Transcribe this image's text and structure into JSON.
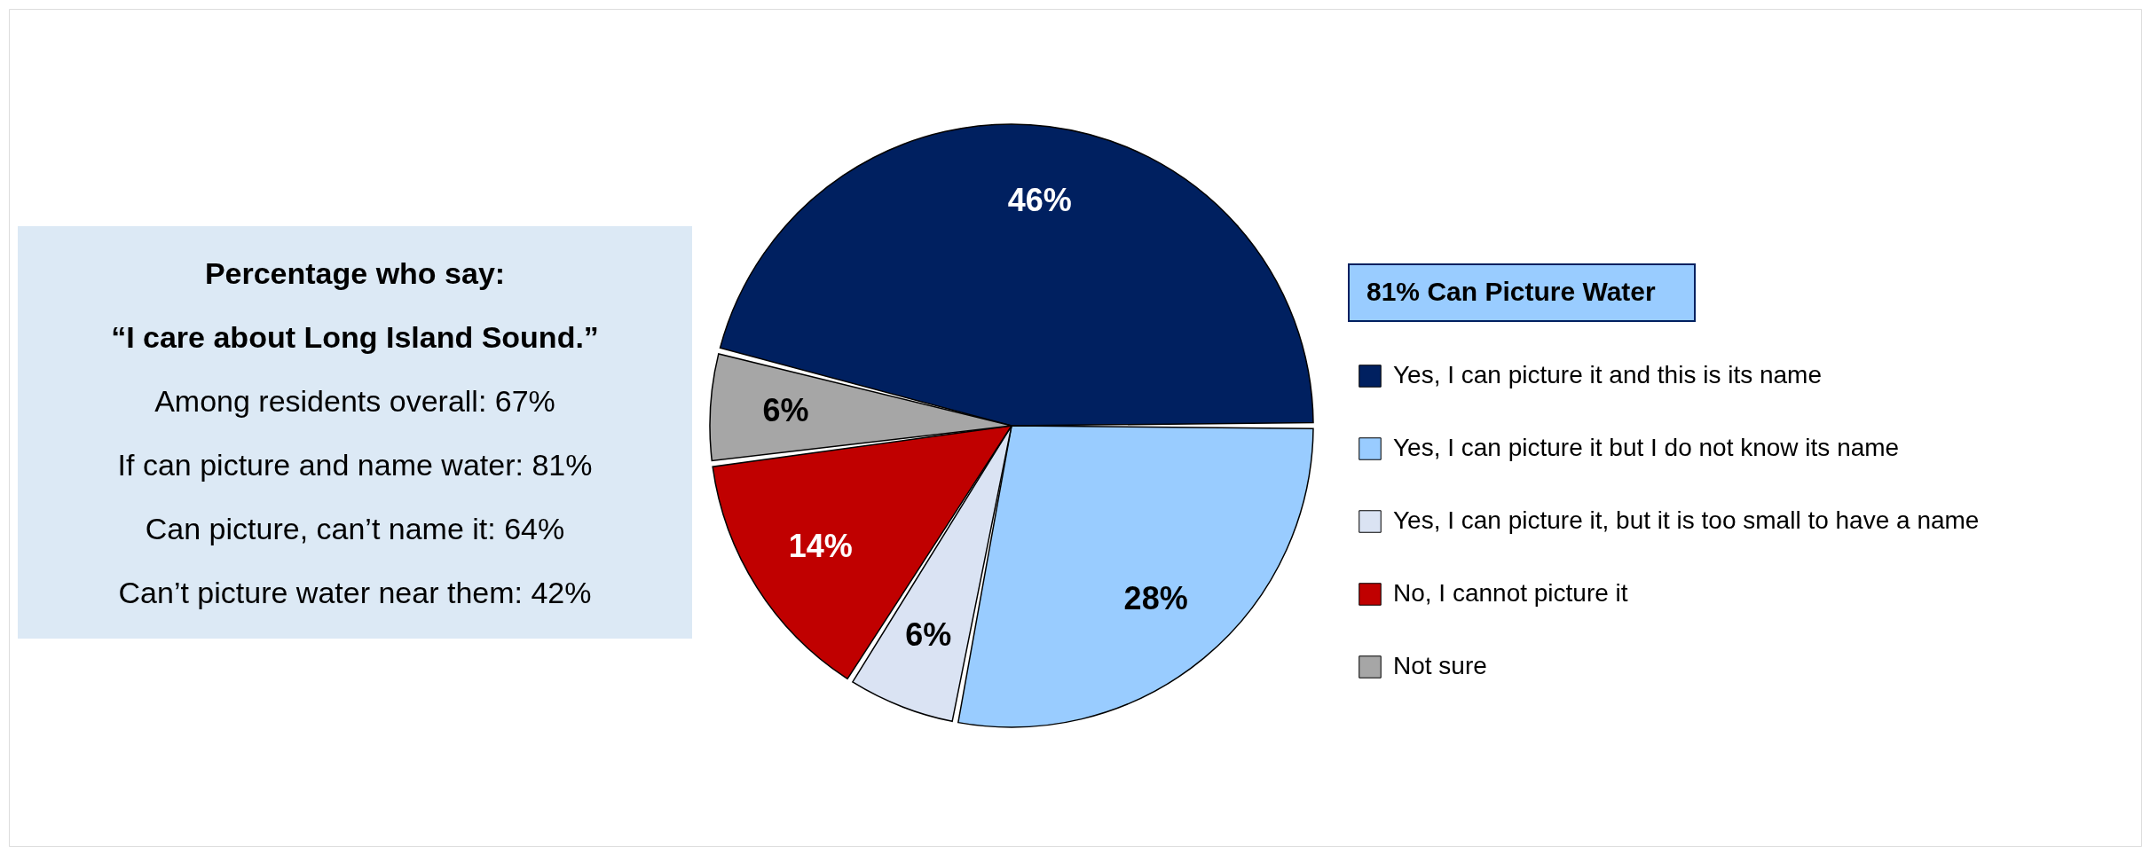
{
  "chart_data": {
    "type": "pie",
    "categories": [
      "Yes, I can picture it and this is its name",
      "Yes, I can picture it but I do not know its name",
      "Yes, I can picture it, but it is too small to have a name",
      "No, I cannot picture it",
      "Not sure"
    ],
    "values": [
      46,
      28,
      6,
      14,
      6
    ],
    "value_labels": [
      "46%",
      "28%",
      "6%",
      "14%",
      "6%"
    ],
    "colors": [
      "#002060",
      "#99ccff",
      "#dae3f3",
      "#c00000",
      "#a6a6a6"
    ],
    "legend": "right",
    "annotations": [
      "Percentage who say:",
      "“I care about Long Island Sound.”",
      "Among residents overall: 67%",
      "If can picture and name water: 81%",
      "Can picture, can’t name it: 64%",
      "Can’t picture water near them: 42%",
      "81% Can Picture Water"
    ]
  }
}
